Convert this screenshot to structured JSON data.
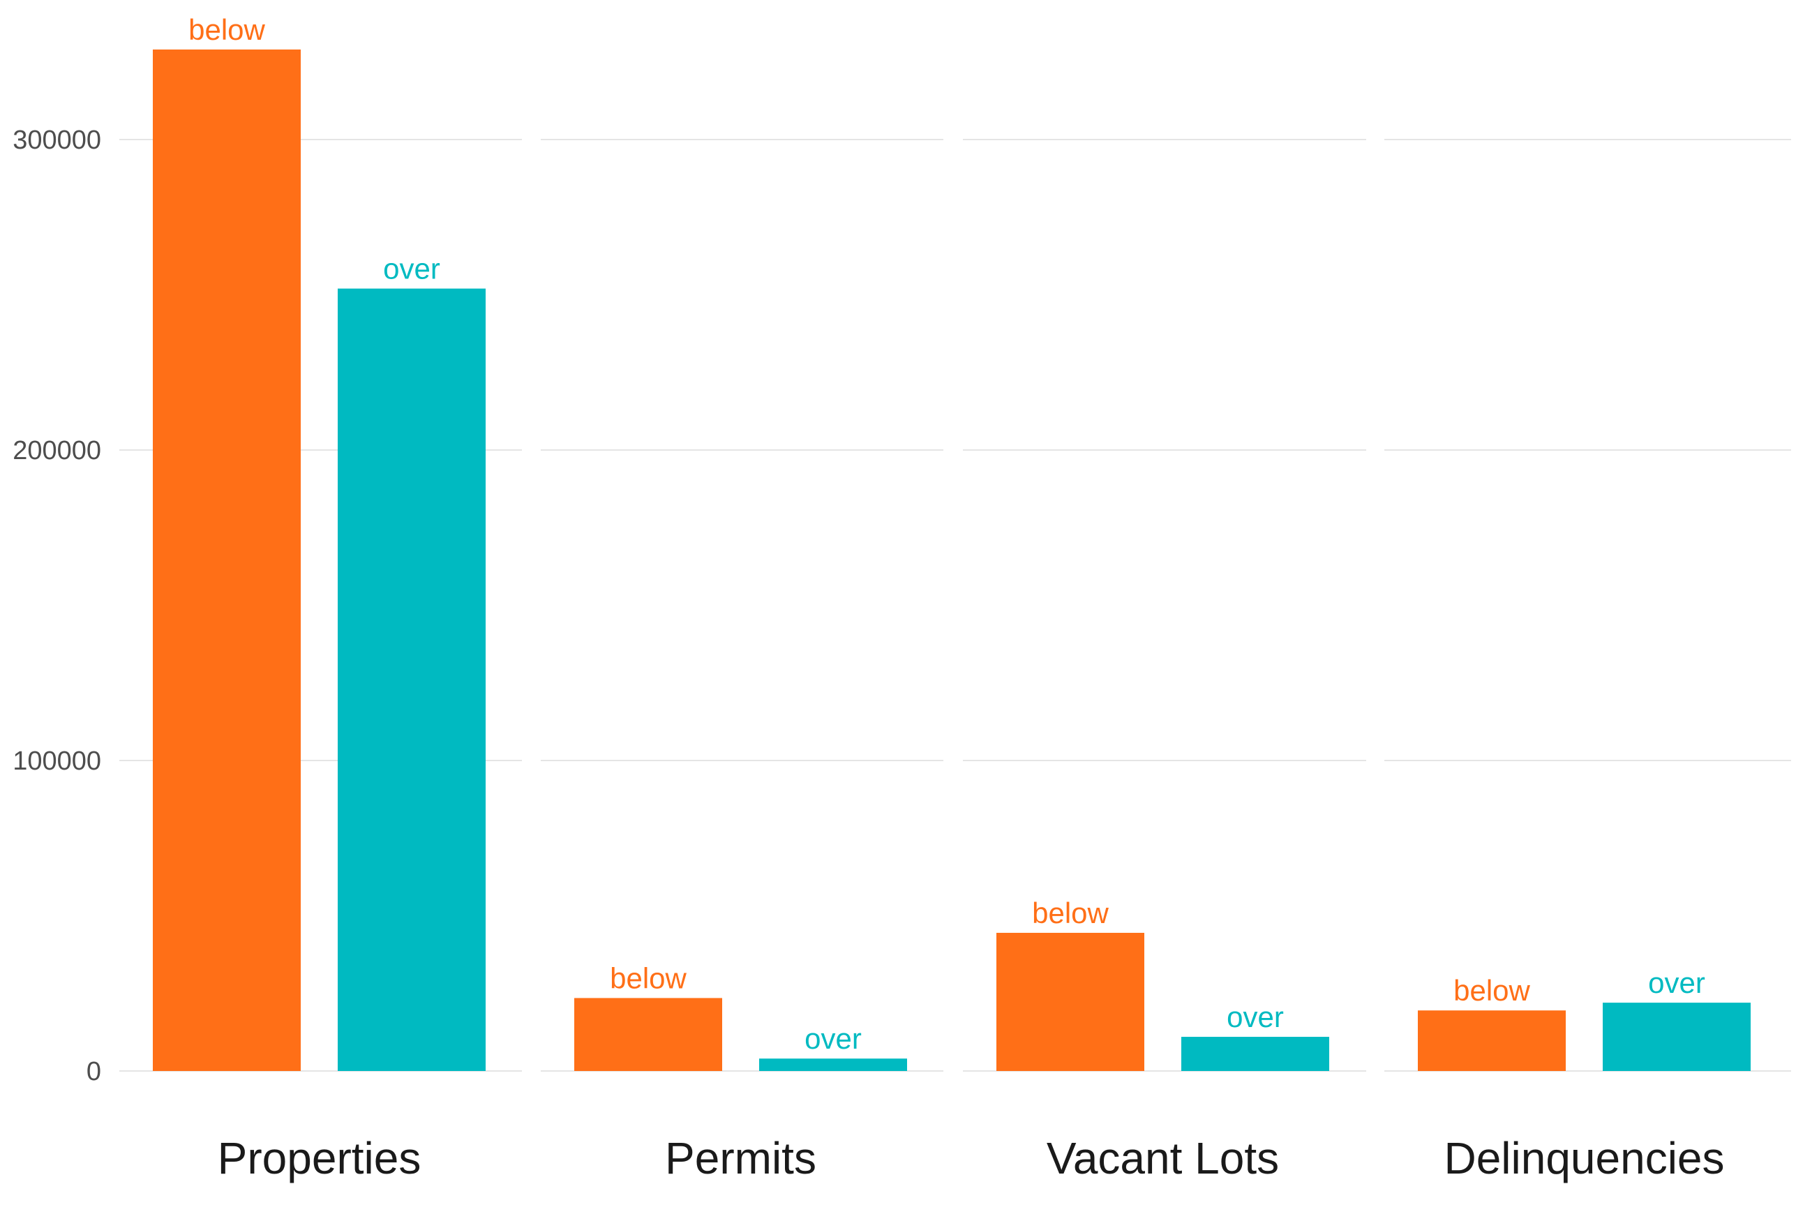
{
  "chart_data": {
    "type": "bar",
    "layout": "faceted",
    "colors": {
      "below": "#FF6F17",
      "over": "#00BAC1"
    },
    "ylim": [
      0,
      330000
    ],
    "yticks": [
      0,
      100000,
      200000,
      300000
    ],
    "ytick_labels": [
      "0",
      "100000",
      "200000",
      "300000"
    ],
    "grid": true,
    "legend": "none",
    "panels": [
      {
        "name": "Properties",
        "bars": [
          {
            "group": "below",
            "label": "below",
            "value": 329000
          },
          {
            "group": "over",
            "label": "over",
            "value": 252000
          }
        ]
      },
      {
        "name": "Permits",
        "bars": [
          {
            "group": "below",
            "label": "below",
            "value": 23500
          },
          {
            "group": "over",
            "label": "over",
            "value": 4000
          }
        ]
      },
      {
        "name": "Vacant Lots",
        "bars": [
          {
            "group": "below",
            "label": "below",
            "value": 44500
          },
          {
            "group": "over",
            "label": "over",
            "value": 11000
          }
        ]
      },
      {
        "name": "Delinquencies",
        "bars": [
          {
            "group": "below",
            "label": "below",
            "value": 19500
          },
          {
            "group": "over",
            "label": "over",
            "value": 22000
          }
        ]
      }
    ]
  }
}
